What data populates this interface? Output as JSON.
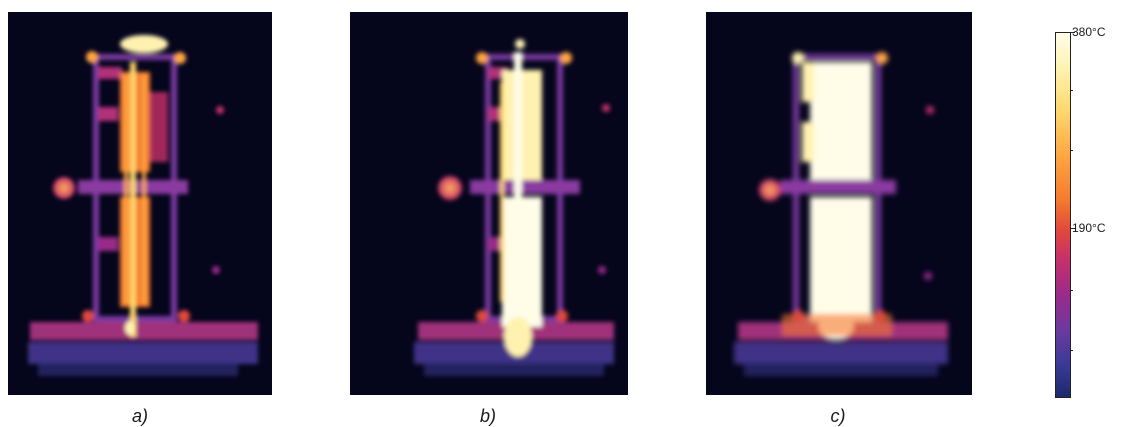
{
  "panels": [
    {
      "caption": "a)"
    },
    {
      "caption": "b)"
    },
    {
      "caption": "c)"
    }
  ],
  "colorbar": {
    "max_label": "380°C",
    "mid_label": "190°C",
    "colormap": "inferno-like thermal",
    "colors": [
      "#05051c",
      "#3a3a96",
      "#9a2a8a",
      "#e04a3a",
      "#ffa540",
      "#fff2b0",
      "#fffde8"
    ]
  }
}
